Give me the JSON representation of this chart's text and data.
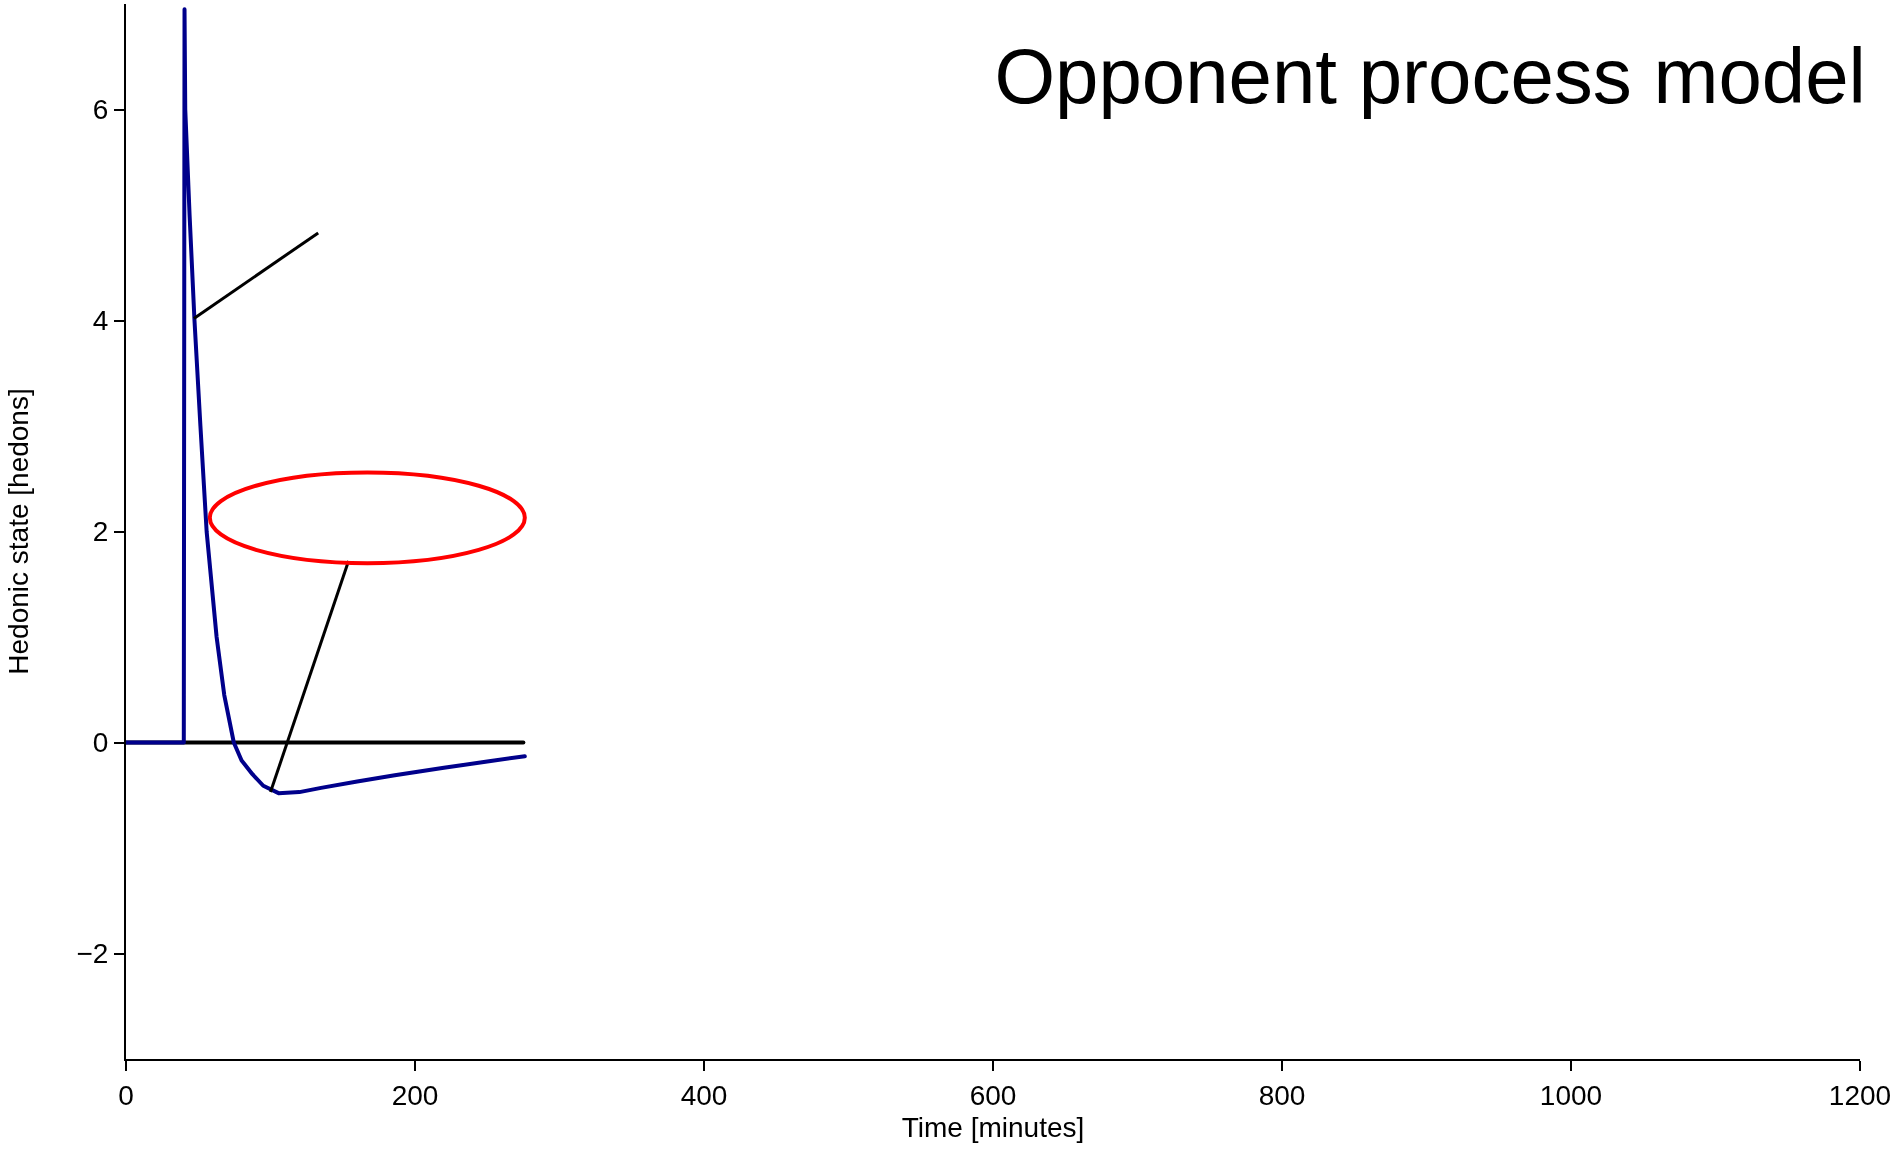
{
  "chart_data": {
    "type": "line",
    "title": "Opponent process model",
    "xlabel": "Time [minutes]",
    "ylabel": "Hedonic state [hedons]",
    "xlim": [
      0,
      1200
    ],
    "xticks": [
      0,
      200,
      400,
      600,
      800,
      1000,
      1200
    ],
    "ylim": [
      -3,
      7
    ],
    "yticks": [
      {
        "value": -2,
        "label": "−2"
      },
      0,
      2,
      4,
      6
    ],
    "grid": false,
    "marker": "none",
    "line_style": "solid",
    "series": [
      {
        "color": "#000000",
        "x": [
          0,
          275
        ],
        "values": [
          0,
          0
        ]
      },
      {
        "color": "#00008b",
        "x": [
          0,
          40,
          40.5,
          41,
          44,
          47.4,
          51.5,
          55.8,
          62.7,
          68,
          74.6,
          80,
          87.5,
          95,
          105.6,
          120,
          135,
          160,
          186,
          220,
          250,
          276
        ],
        "values": [
          0,
          0,
          6.95,
          6,
          5,
          4,
          3,
          2,
          1,
          0.45,
          0,
          -0.17,
          -0.3,
          -0.41,
          -0.48,
          -0.47,
          -0.43,
          -0.37,
          -0.31,
          -0.24,
          -0.18,
          -0.13
        ]
      }
    ]
  }
}
